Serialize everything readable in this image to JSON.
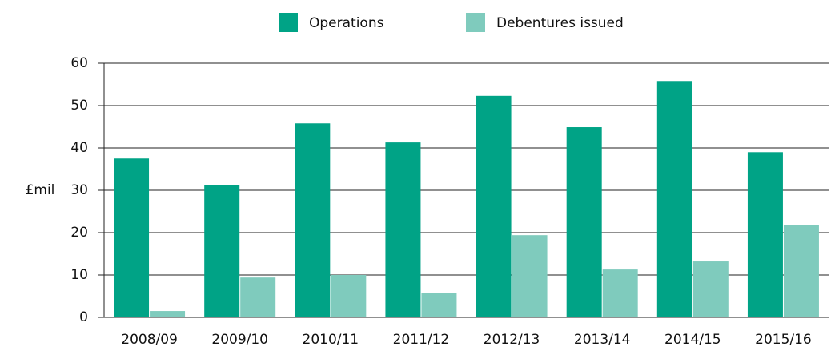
{
  "chart_data": {
    "type": "bar",
    "ylabel": "£mil",
    "categories": [
      "2008/09",
      "2009/10",
      "2010/11",
      "2011/12",
      "2012/13",
      "2013/14",
      "2014/15",
      "2015/16"
    ],
    "series": [
      {
        "name": "Operations",
        "color": "#00a386",
        "values": [
          37.5,
          31.3,
          45.8,
          41.3,
          52.3,
          44.9,
          55.8,
          39
        ]
      },
      {
        "name": "Debentures issued",
        "color": "#7fcbbd",
        "values": [
          1.5,
          9.4,
          10,
          5.8,
          19.4,
          11.3,
          13.2,
          21.7
        ]
      }
    ],
    "ylim": [
      0,
      60
    ],
    "yticks": [
      0,
      10,
      20,
      30,
      40,
      50,
      60
    ],
    "grid": true,
    "legend": "top"
  }
}
